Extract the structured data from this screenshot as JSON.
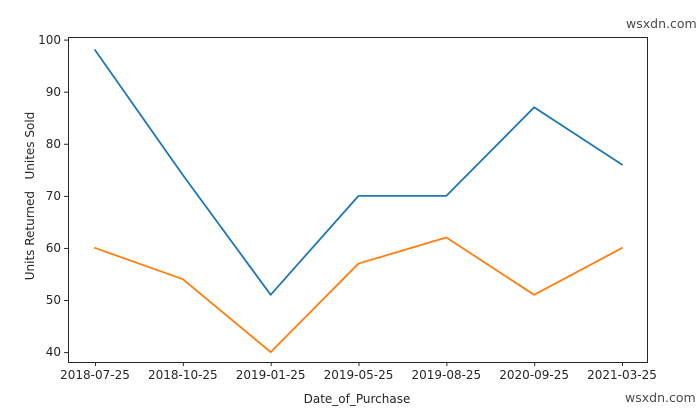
{
  "figure": {
    "background": "#ffffff",
    "watermark_top": "wsxdn.com",
    "watermark_bottom": "wsxdn.com",
    "watermark_color": "#4a4a4a",
    "axis_color": "#262626"
  },
  "chart_data": {
    "type": "line",
    "title": "",
    "xlabel": "Date_of_Purchase",
    "ylabel": "Units Returned   Unites Sold",
    "categories": [
      "2018-07-25",
      "2018-10-25",
      "2019-01-25",
      "2019-05-25",
      "2019-08-25",
      "2020-09-25",
      "2021-03-25"
    ],
    "series": [
      {
        "name": "Unites Sold",
        "color": "#1f77b4",
        "values": [
          98,
          74,
          51,
          70,
          70,
          87,
          76
        ]
      },
      {
        "name": "Units Returned",
        "color": "#ff7f0e",
        "values": [
          60,
          54,
          40,
          57,
          62,
          51,
          60
        ]
      }
    ],
    "y_ticks": [
      40,
      50,
      60,
      70,
      80,
      90,
      100
    ],
    "ylim": [
      38.1,
      100.5
    ],
    "grid": false,
    "legend": "none"
  }
}
